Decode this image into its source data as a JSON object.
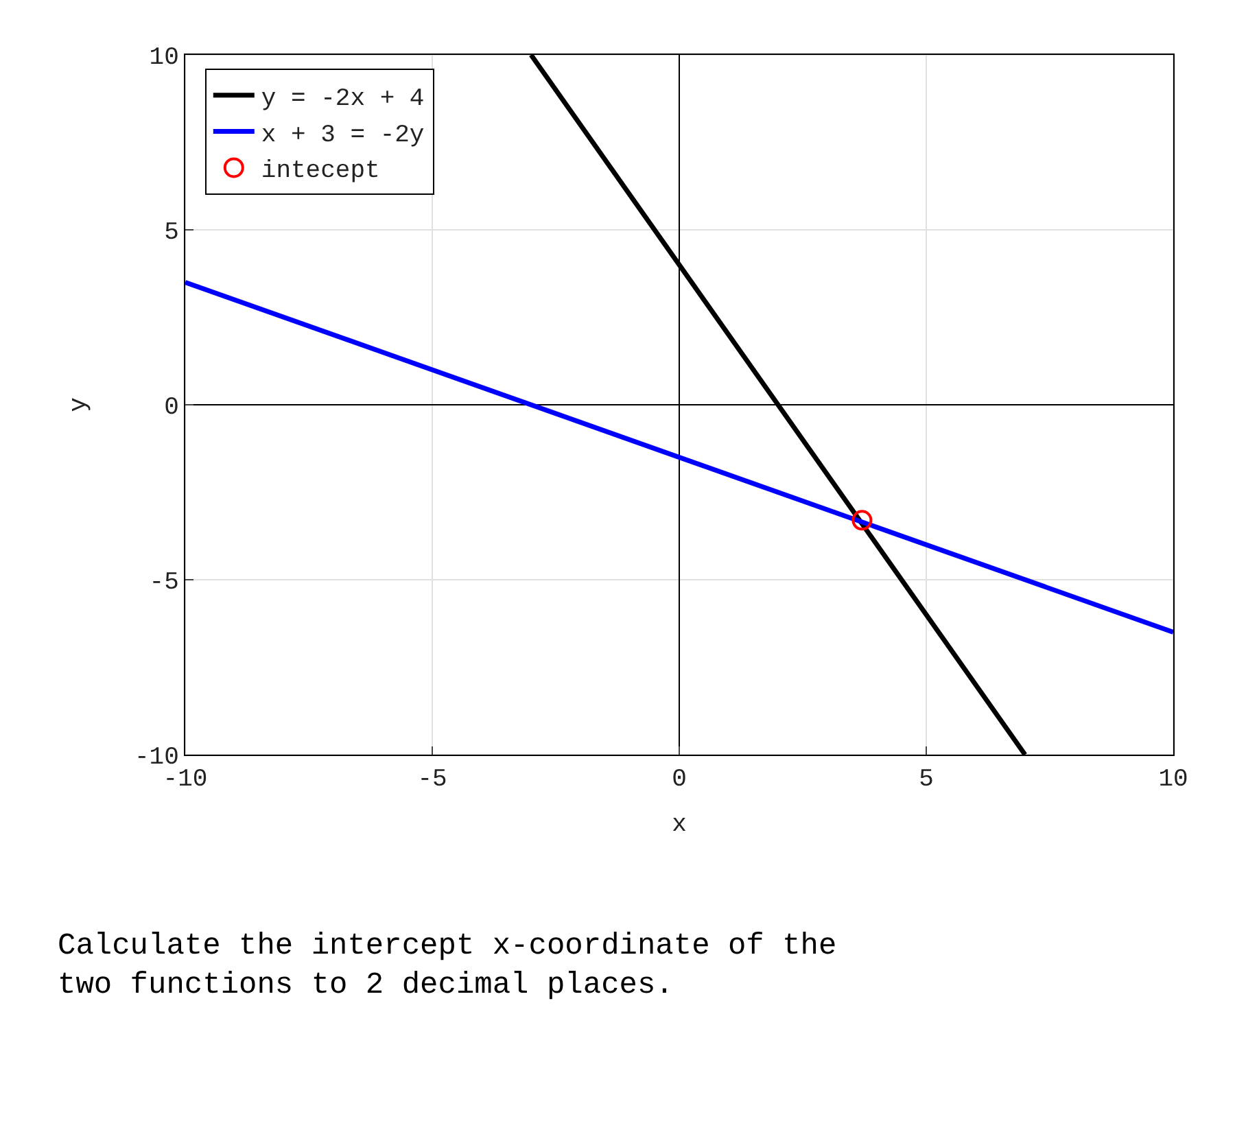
{
  "chart_data": {
    "type": "line",
    "xlabel": "x",
    "ylabel": "y",
    "xlim": [
      -10,
      10
    ],
    "ylim": [
      -10,
      10
    ],
    "xticks": [
      -10,
      -5,
      0,
      5,
      10
    ],
    "yticks": [
      -10,
      -5,
      0,
      5,
      10
    ],
    "grid": true,
    "legend": "top left",
    "line_style": "solid",
    "marker": "none",
    "series": [
      {
        "name": "y = -2x + 4",
        "color": "#000000",
        "x": [
          -3,
          7
        ],
        "values": [
          10,
          -10
        ]
      },
      {
        "name": "x + 3 = -2y",
        "color": "#0000ff",
        "x": [
          -10,
          10
        ],
        "values": [
          3.5,
          -6.5
        ]
      },
      {
        "name": "intecept",
        "type": "scatter",
        "marker": "circle",
        "color": "#ff0000",
        "x": [
          3.7
        ],
        "values": [
          -3.3
        ]
      }
    ],
    "annotations": [
      "Calculate the intercept x-coordinate of the two functions to 2 decimal places."
    ]
  }
}
